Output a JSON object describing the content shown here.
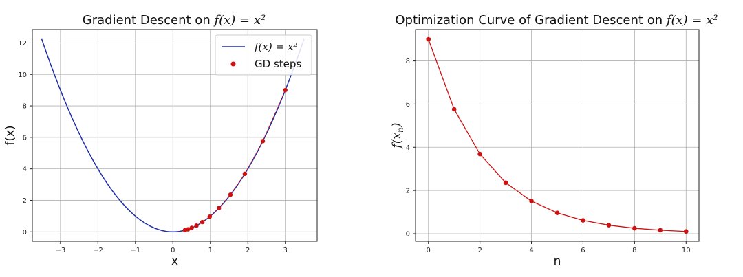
{
  "chart_data": [
    {
      "type": "line",
      "title_prefix": "Gradient Descent on ",
      "title_math": "f(x) = x²",
      "xlabel": "x",
      "ylabel": "f(x)",
      "xlim": [
        -3.75,
        3.85
      ],
      "ylim": [
        -0.6,
        12.85
      ],
      "xticks": [
        -3,
        -2,
        -1,
        0,
        1,
        2,
        3
      ],
      "yticks": [
        0,
        2,
        4,
        6,
        8,
        10,
        12
      ],
      "grid": true,
      "legend": {
        "placement": "top-right"
      },
      "series": [
        {
          "name": "f(x) = x²",
          "kind": "line",
          "color": "#1f2fa8",
          "function": "x^2",
          "domain": [
            -3.5,
            3.5
          ]
        },
        {
          "name": "GD steps",
          "kind": "scatter",
          "color": "#cc1111",
          "x": [
            3.0,
            2.4,
            1.92,
            1.536,
            1.229,
            0.983,
            0.786,
            0.629,
            0.503,
            0.403,
            0.322
          ],
          "y": [
            9.0,
            5.76,
            3.686,
            2.359,
            1.51,
            0.966,
            0.618,
            0.396,
            0.253,
            0.162,
            0.104
          ]
        }
      ]
    },
    {
      "type": "line",
      "title_prefix": "Optimization Curve of Gradient Descent on ",
      "title_math": "f(x) = x²",
      "xlabel": "n",
      "ylabel_main": "f(x",
      "ylabel_sub": "n",
      "ylabel_close": ")",
      "xlim": [
        -0.5,
        10.5
      ],
      "ylim": [
        -0.35,
        9.45
      ],
      "xticks": [
        0,
        2,
        4,
        6,
        8,
        10
      ],
      "yticks": [
        0,
        2,
        4,
        6,
        8
      ],
      "grid": true,
      "series": [
        {
          "kind": "line+markers",
          "color": "#cc1111",
          "x": [
            0,
            1,
            2,
            3,
            4,
            5,
            6,
            7,
            8,
            9,
            10
          ],
          "y": [
            9.0,
            5.76,
            3.686,
            2.359,
            1.51,
            0.966,
            0.618,
            0.396,
            0.253,
            0.162,
            0.104
          ]
        }
      ]
    }
  ]
}
